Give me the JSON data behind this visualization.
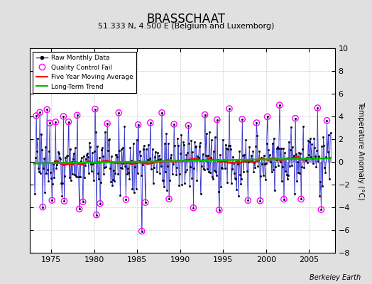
{
  "title": "BRASSCHAAT",
  "subtitle": "51.333 N, 4.500 E (Belgium and Luxemborg)",
  "ylabel": "Temperature Anomaly (°C)",
  "xlim": [
    1972.5,
    2008.0
  ],
  "ylim": [
    -8,
    10
  ],
  "yticks": [
    -8,
    -6,
    -4,
    -2,
    0,
    2,
    4,
    6,
    8,
    10
  ],
  "xticks": [
    1975,
    1980,
    1985,
    1990,
    1995,
    2000,
    2005
  ],
  "watermark": "Berkeley Earth",
  "line_color": "#3333cc",
  "moving_avg_color": "#ff0000",
  "trend_color": "#00bb00",
  "qc_color": "#ff00ff",
  "background_color": "#e0e0e0",
  "plot_bg_color": "#ffffff"
}
